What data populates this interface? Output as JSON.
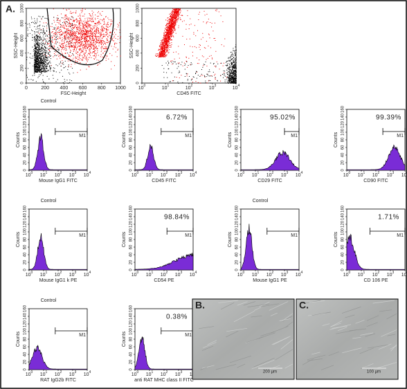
{
  "labels": {
    "a": "A.",
    "b": "B.",
    "c": "C."
  },
  "dot_plots": [
    {
      "y_label": "SSC-Height",
      "x_label": "FSC-Height",
      "y_ticks": [
        "0",
        "200",
        "400",
        "600",
        "800",
        "1000"
      ],
      "x_ticks": [
        "0",
        "200",
        "400",
        "600",
        "800",
        "1000"
      ]
    },
    {
      "y_label": "SSC-Height",
      "x_label": "CD45 FITC",
      "y_ticks": [
        "0",
        "200",
        "400",
        "600",
        "800",
        "1000"
      ],
      "x_ticks": [
        {
          "base": "10",
          "sup": "0"
        },
        {
          "base": "10",
          "sup": "1"
        },
        {
          "base": "10",
          "sup": "2"
        },
        {
          "base": "10",
          "sup": "3"
        },
        {
          "base": "10",
          "sup": "4"
        }
      ]
    }
  ],
  "hist_axis": {
    "y_label": "Counts",
    "marker": "M1",
    "y_ticks": [
      "0",
      "20",
      "40",
      "60",
      "80",
      "100",
      "120",
      "140",
      "160"
    ],
    "x_ticks": [
      {
        "base": "10",
        "sup": "0"
      },
      {
        "base": "10",
        "sup": "1"
      },
      {
        "base": "10",
        "sup": "2"
      },
      {
        "base": "10",
        "sup": "3"
      },
      {
        "base": "10",
        "sup": "4"
      }
    ]
  },
  "histograms": [
    {
      "title": "Control",
      "x_label": "Mouse IgG1 FITC"
    },
    {
      "percent": "6.72%",
      "x_label": "CD45 FITC"
    },
    {
      "percent": "95.02%",
      "x_label": "CD29 FITC"
    },
    {
      "percent": "99.39%",
      "x_label": "CD90 FITC"
    },
    {
      "title": "Control",
      "x_label": "Mouse IgG1 k PE"
    },
    {
      "percent": "98.84%",
      "x_label": "CD54 PE"
    },
    {
      "title": "Control",
      "x_label": "Mouse IgG1 PE"
    },
    {
      "percent": "1.71%",
      "x_label": "CD 106 PE"
    },
    {
      "title": "Control",
      "x_label": "RAT IgG2b FITC"
    },
    {
      "percent": "0.38%",
      "x_label": "anti RAT MHC class II FITC"
    }
  ],
  "micrographs": [
    {
      "scale_bar": "200 µm"
    },
    {
      "scale_bar": "100 µm"
    }
  ]
}
